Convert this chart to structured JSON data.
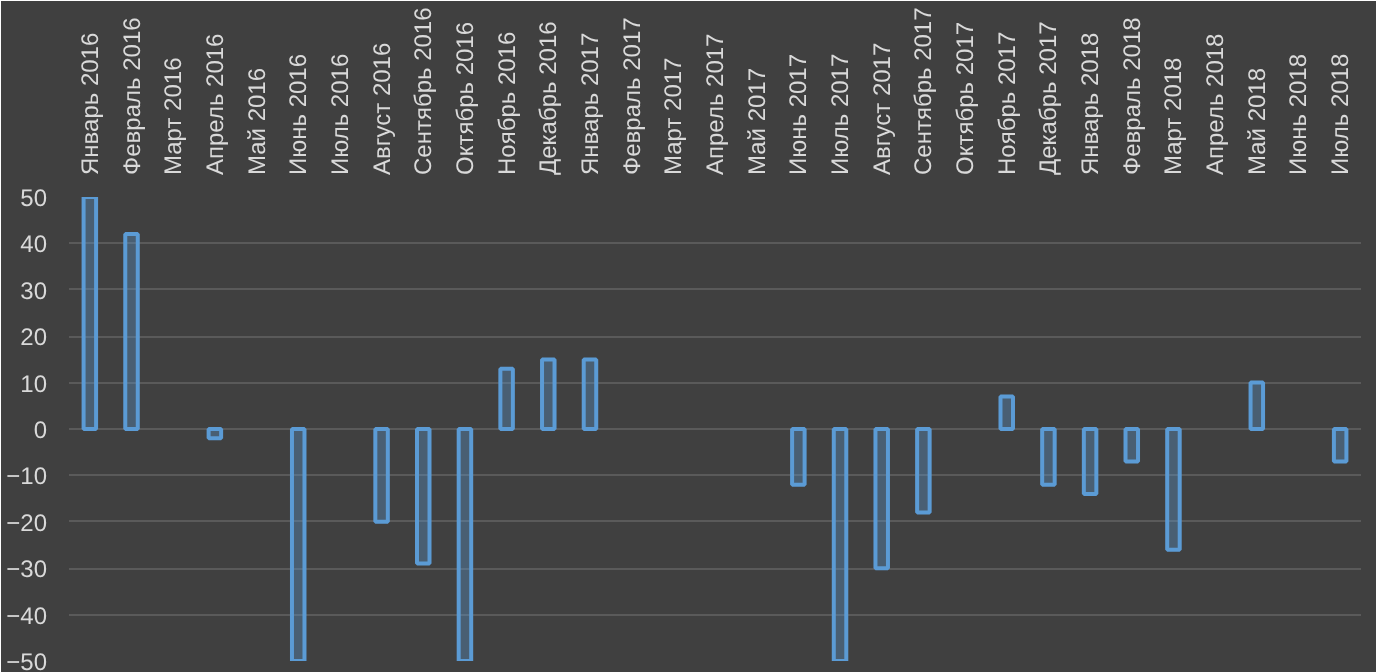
{
  "chart_data": {
    "type": "bar",
    "categories": [
      "Январь 2016",
      "Февраль 2016",
      "Март 2016",
      "Апрель 2016",
      "Май 2016",
      "Июнь 2016",
      "Июль 2016",
      "Август 2016",
      "Сентябрь 2016",
      "Октябрь 2016",
      "Ноябрь 2016",
      "Декабрь 2016",
      "Январь 2017",
      "Февраль 2017",
      "Март 2017",
      "Апрель 2017",
      "Май 2017",
      "Июнь 2017",
      "Июль 2017",
      "Август 2017",
      "Сентябрь 2017",
      "Октябрь 2017",
      "Ноябрь 2017",
      "Декабрь 2017",
      "Январь 2018",
      "Февраль 2018",
      "Март 2018",
      "Апрель 2018",
      "Май 2018",
      "Июнь 2018",
      "Июль 2018"
    ],
    "values": [
      50,
      42,
      null,
      -2,
      null,
      -50,
      null,
      -20,
      -29,
      -50,
      13,
      15,
      15,
      null,
      null,
      null,
      null,
      -12,
      -50,
      -30,
      -18,
      null,
      7,
      -12,
      -14,
      -7,
      -26,
      null,
      10,
      null,
      -7
    ],
    "color": "#5b9bd5",
    "ylim": [
      -50,
      50
    ],
    "yticks": [
      -50,
      -40,
      -30,
      -20,
      -10,
      0,
      10,
      20,
      30,
      40,
      50
    ],
    "grid": "y"
  }
}
